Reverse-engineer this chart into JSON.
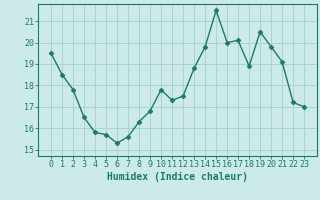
{
  "x": [
    0,
    1,
    2,
    3,
    4,
    5,
    6,
    7,
    8,
    9,
    10,
    11,
    12,
    13,
    14,
    15,
    16,
    17,
    18,
    19,
    20,
    21,
    22,
    23
  ],
  "y": [
    19.5,
    18.5,
    17.8,
    16.5,
    15.8,
    15.7,
    15.3,
    15.6,
    16.3,
    16.8,
    17.8,
    17.3,
    17.5,
    18.8,
    19.8,
    21.5,
    20.0,
    20.1,
    18.9,
    20.5,
    19.8,
    19.1,
    17.2,
    17.0
  ],
  "line_color": "#1a7a6e",
  "marker": "D",
  "markersize": 2.5,
  "linewidth": 1.0,
  "xlabel": "Humidex (Indice chaleur)",
  "xlabel_fontsize": 7,
  "background_color": "#cceae7",
  "grid_color": "#aad4d0",
  "ylim": [
    14.7,
    21.8
  ],
  "yticks": [
    15,
    16,
    17,
    18,
    19,
    20,
    21
  ],
  "xticks": [
    0,
    1,
    2,
    3,
    4,
    5,
    6,
    7,
    8,
    9,
    10,
    11,
    12,
    13,
    14,
    15,
    16,
    17,
    18,
    19,
    20,
    21,
    22,
    23
  ],
  "tick_fontsize": 6,
  "tick_color": "#1a7a6e",
  "spine_color": "#1a7a6e"
}
